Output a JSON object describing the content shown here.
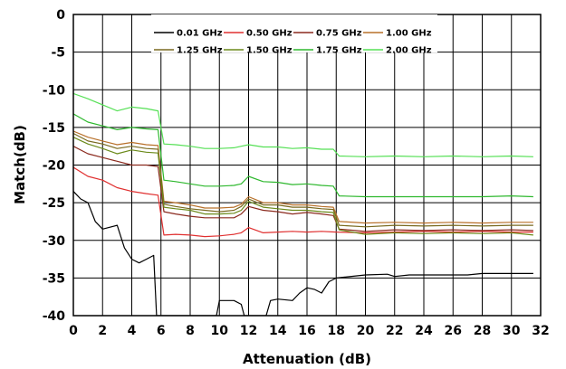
{
  "chart_data": {
    "type": "line",
    "title": "",
    "xlabel": "Attenuation (dB)",
    "ylabel": "Match(dB)",
    "xlim": [
      0,
      32
    ],
    "ylim": [
      -40,
      0
    ],
    "xticks": [
      0,
      2,
      4,
      6,
      8,
      10,
      12,
      14,
      16,
      18,
      20,
      22,
      24,
      26,
      28,
      30,
      32
    ],
    "yticks": [
      0,
      -5,
      -10,
      -15,
      -20,
      -25,
      -30,
      -35,
      -40
    ],
    "grid": true,
    "legend_position": "top-center",
    "series": [
      {
        "name": "0.01 GHz",
        "color": "#000000",
        "points": [
          [
            0,
            -23.5
          ],
          [
            0.5,
            -24.5
          ],
          [
            1,
            -25
          ],
          [
            1.5,
            -27.5
          ],
          [
            2,
            -28.5
          ],
          [
            3,
            -28
          ],
          [
            3.5,
            -31
          ],
          [
            4,
            -32.5
          ],
          [
            4.5,
            -33
          ],
          [
            5,
            -32.5
          ],
          [
            5.5,
            -32
          ],
          [
            5.7,
            -40
          ],
          [
            9.8,
            -40
          ],
          [
            10,
            -38
          ],
          [
            11,
            -38
          ],
          [
            11.5,
            -38.5
          ],
          [
            11.7,
            -40
          ],
          [
            13.2,
            -40
          ],
          [
            13.5,
            -38
          ],
          [
            14,
            -37.8
          ],
          [
            15,
            -38
          ],
          [
            15.5,
            -37
          ],
          [
            16,
            -36.3
          ],
          [
            16.5,
            -36.5
          ],
          [
            17,
            -37
          ],
          [
            17.5,
            -35.5
          ],
          [
            18,
            -35
          ],
          [
            20,
            -34.6
          ],
          [
            21.5,
            -34.5
          ],
          [
            22,
            -34.8
          ],
          [
            23,
            -34.6
          ],
          [
            25,
            -34.6
          ],
          [
            27,
            -34.6
          ],
          [
            28,
            -34.4
          ],
          [
            30,
            -34.4
          ],
          [
            31.5,
            -34.4
          ]
        ]
      },
      {
        "name": "0.50 GHz",
        "color": "#e03030",
        "points": [
          [
            0,
            -20.3
          ],
          [
            1,
            -21.5
          ],
          [
            2,
            -22
          ],
          [
            3,
            -23
          ],
          [
            4,
            -23.5
          ],
          [
            5,
            -23.8
          ],
          [
            5.8,
            -24
          ],
          [
            6.2,
            -29.3
          ],
          [
            7,
            -29.2
          ],
          [
            8,
            -29.3
          ],
          [
            9,
            -29.5
          ],
          [
            10,
            -29.4
          ],
          [
            11,
            -29.2
          ],
          [
            11.5,
            -29
          ],
          [
            12,
            -28.3
          ],
          [
            13,
            -29
          ],
          [
            14,
            -28.9
          ],
          [
            15,
            -28.8
          ],
          [
            16,
            -28.9
          ],
          [
            17,
            -28.8
          ],
          [
            18,
            -28.9
          ],
          [
            20,
            -29
          ],
          [
            22,
            -28.9
          ],
          [
            24,
            -28.8
          ],
          [
            26,
            -28.9
          ],
          [
            28,
            -28.8
          ],
          [
            30,
            -28.9
          ],
          [
            31.5,
            -28.9
          ]
        ]
      },
      {
        "name": "0.75 GHz",
        "color": "#8b2a1e",
        "points": [
          [
            0,
            -17.5
          ],
          [
            1,
            -18.5
          ],
          [
            2,
            -19
          ],
          [
            3,
            -19.5
          ],
          [
            4,
            -20
          ],
          [
            5,
            -20
          ],
          [
            5.8,
            -20.2
          ],
          [
            6.2,
            -26.2
          ],
          [
            7,
            -26.5
          ],
          [
            8,
            -26.8
          ],
          [
            9,
            -27
          ],
          [
            10,
            -27
          ],
          [
            11,
            -27
          ],
          [
            11.5,
            -26.5
          ],
          [
            12,
            -25.5
          ],
          [
            13,
            -26
          ],
          [
            14,
            -26.2
          ],
          [
            15,
            -26.5
          ],
          [
            16,
            -26.3
          ],
          [
            17,
            -26.5
          ],
          [
            17.8,
            -26.7
          ],
          [
            18.2,
            -28.5
          ],
          [
            20,
            -28.8
          ],
          [
            22,
            -28.6
          ],
          [
            24,
            -28.7
          ],
          [
            26,
            -28.6
          ],
          [
            28,
            -28.7
          ],
          [
            30,
            -28.6
          ],
          [
            31.5,
            -28.7
          ]
        ]
      },
      {
        "name": "1.00 GHz",
        "color": "#b8702a",
        "points": [
          [
            0,
            -15.5
          ],
          [
            1,
            -16.3
          ],
          [
            2,
            -16.8
          ],
          [
            3,
            -17.3
          ],
          [
            4,
            -17
          ],
          [
            5,
            -17.3
          ],
          [
            5.8,
            -17.4
          ],
          [
            6.2,
            -24.8
          ],
          [
            7,
            -25
          ],
          [
            8,
            -25.3
          ],
          [
            9,
            -25.7
          ],
          [
            10,
            -25.7
          ],
          [
            11,
            -25.6
          ],
          [
            11.5,
            -25.2
          ],
          [
            12,
            -24.2
          ],
          [
            13,
            -25
          ],
          [
            14,
            -25
          ],
          [
            15,
            -25.3
          ],
          [
            16,
            -25.3
          ],
          [
            17,
            -25.5
          ],
          [
            17.8,
            -25.6
          ],
          [
            18.2,
            -27.5
          ],
          [
            20,
            -27.7
          ],
          [
            22,
            -27.6
          ],
          [
            24,
            -27.7
          ],
          [
            26,
            -27.6
          ],
          [
            28,
            -27.7
          ],
          [
            30,
            -27.6
          ],
          [
            31.5,
            -27.6
          ]
        ]
      },
      {
        "name": "1.25 GHz",
        "color": "#7a6a20",
        "points": [
          [
            0,
            -15.8
          ],
          [
            1,
            -16.8
          ],
          [
            2,
            -17.2
          ],
          [
            3,
            -17.8
          ],
          [
            4,
            -17.5
          ],
          [
            5,
            -17.8
          ],
          [
            5.8,
            -17.9
          ],
          [
            6.2,
            -25.2
          ],
          [
            7,
            -25.5
          ],
          [
            8,
            -25.8
          ],
          [
            9,
            -26
          ],
          [
            10,
            -26.2
          ],
          [
            11,
            -26
          ],
          [
            11.5,
            -25.5
          ],
          [
            12,
            -24.5
          ],
          [
            13,
            -25.3
          ],
          [
            14,
            -25.3
          ],
          [
            15,
            -25.6
          ],
          [
            16,
            -25.6
          ],
          [
            17,
            -25.8
          ],
          [
            17.8,
            -25.9
          ],
          [
            18.2,
            -28
          ],
          [
            20,
            -28.2
          ],
          [
            22,
            -28
          ],
          [
            24,
            -28.1
          ],
          [
            26,
            -28
          ],
          [
            28,
            -28.1
          ],
          [
            30,
            -28
          ],
          [
            31.5,
            -28
          ]
        ]
      },
      {
        "name": "1.50 GHz",
        "color": "#6b8a1a",
        "points": [
          [
            0,
            -16.3
          ],
          [
            1,
            -17.2
          ],
          [
            2,
            -17.8
          ],
          [
            3,
            -18.5
          ],
          [
            4,
            -18
          ],
          [
            5,
            -18.3
          ],
          [
            5.8,
            -18.4
          ],
          [
            6.2,
            -25.6
          ],
          [
            7,
            -25.8
          ],
          [
            8,
            -26
          ],
          [
            9,
            -26.5
          ],
          [
            10,
            -26.5
          ],
          [
            11,
            -26.4
          ],
          [
            11.5,
            -26
          ],
          [
            12,
            -24.8
          ],
          [
            13,
            -25.6
          ],
          [
            14,
            -25.8
          ],
          [
            15,
            -26
          ],
          [
            16,
            -26
          ],
          [
            17,
            -26.2
          ],
          [
            17.8,
            -26.3
          ],
          [
            18.2,
            -28.6
          ],
          [
            20,
            -29.2
          ],
          [
            22,
            -29
          ],
          [
            24,
            -29.1
          ],
          [
            26,
            -29
          ],
          [
            28,
            -29.1
          ],
          [
            30,
            -29
          ],
          [
            31.5,
            -29.3
          ]
        ]
      },
      {
        "name": "1.75 GHz",
        "color": "#2eb82e",
        "points": [
          [
            0,
            -13.2
          ],
          [
            1,
            -14.3
          ],
          [
            2,
            -14.8
          ],
          [
            3,
            -15.3
          ],
          [
            4,
            -15
          ],
          [
            5,
            -15.2
          ],
          [
            5.8,
            -15.3
          ],
          [
            6.2,
            -22
          ],
          [
            7,
            -22.2
          ],
          [
            8,
            -22.5
          ],
          [
            9,
            -22.8
          ],
          [
            10,
            -22.8
          ],
          [
            11,
            -22.7
          ],
          [
            11.5,
            -22.5
          ],
          [
            12,
            -21.5
          ],
          [
            13,
            -22.2
          ],
          [
            14,
            -22.3
          ],
          [
            15,
            -22.6
          ],
          [
            16,
            -22.5
          ],
          [
            17,
            -22.7
          ],
          [
            17.8,
            -22.8
          ],
          [
            18.2,
            -24.1
          ],
          [
            20,
            -24.2
          ],
          [
            22,
            -24.2
          ],
          [
            24,
            -24.2
          ],
          [
            26,
            -24.2
          ],
          [
            28,
            -24.2
          ],
          [
            30,
            -24.1
          ],
          [
            31.5,
            -24.2
          ]
        ]
      },
      {
        "name": "2.00 GHz",
        "color": "#55e055",
        "points": [
          [
            0,
            -10.5
          ],
          [
            1,
            -11.2
          ],
          [
            2,
            -12
          ],
          [
            3,
            -12.8
          ],
          [
            4,
            -12.3
          ],
          [
            5,
            -12.5
          ],
          [
            5.8,
            -12.8
          ],
          [
            6.2,
            -17.2
          ],
          [
            7,
            -17.3
          ],
          [
            8,
            -17.5
          ],
          [
            9,
            -17.8
          ],
          [
            10,
            -17.8
          ],
          [
            11,
            -17.7
          ],
          [
            11.5,
            -17.5
          ],
          [
            12,
            -17.3
          ],
          [
            13,
            -17.6
          ],
          [
            14,
            -17.6
          ],
          [
            15,
            -17.8
          ],
          [
            16,
            -17.7
          ],
          [
            17,
            -17.9
          ],
          [
            17.8,
            -17.9
          ],
          [
            18.2,
            -18.8
          ],
          [
            20,
            -18.9
          ],
          [
            22,
            -18.8
          ],
          [
            24,
            -18.9
          ],
          [
            26,
            -18.8
          ],
          [
            28,
            -18.9
          ],
          [
            30,
            -18.8
          ],
          [
            31.5,
            -18.9
          ]
        ]
      }
    ]
  }
}
